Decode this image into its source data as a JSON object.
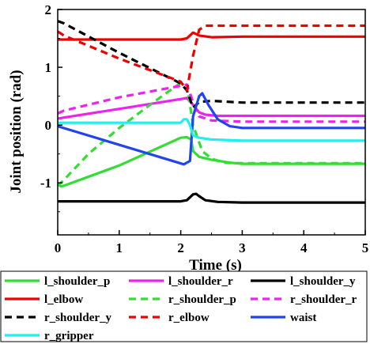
{
  "chart_data": {
    "type": "line",
    "title": "",
    "xlabel": "Time (s)",
    "ylabel": "Joint position (rad)",
    "xlim": [
      0,
      5
    ],
    "ylim": [
      -1.9,
      2
    ],
    "xticks": [
      "0",
      "1",
      "2",
      "3",
      "4",
      "5"
    ],
    "yticks": [
      "-1",
      "0",
      "1",
      "2"
    ],
    "grid": false,
    "legend_position": "bottom",
    "series": [
      {
        "name": "l_shoulder_p",
        "color": "#33dd33",
        "dash": "solid",
        "x": [
          0,
          0.05,
          0.1,
          1.0,
          2.0,
          2.1,
          2.17,
          2.2,
          2.3,
          2.5,
          2.8,
          3.0,
          5.0
        ],
        "y": [
          -1.02,
          -1.06,
          -1.05,
          -0.7,
          -0.22,
          -0.21,
          -0.25,
          -0.45,
          -0.55,
          -0.6,
          -0.65,
          -0.67,
          -0.67
        ]
      },
      {
        "name": "l_shoulder_r",
        "color": "#ee22ee",
        "dash": "solid",
        "x": [
          0,
          0.1,
          1.0,
          2.0,
          2.1,
          2.2,
          2.3,
          2.4,
          2.6,
          3.0,
          5.0
        ],
        "y": [
          0.11,
          0.13,
          0.28,
          0.45,
          0.47,
          0.35,
          0.22,
          0.18,
          0.16,
          0.16,
          0.16
        ]
      },
      {
        "name": "l_shoulder_y",
        "color": "#000000",
        "dash": "solid",
        "x": [
          0,
          2.0,
          2.1,
          2.2,
          2.25,
          2.3,
          2.4,
          2.6,
          3.0,
          5.0
        ],
        "y": [
          -1.32,
          -1.32,
          -1.3,
          -1.2,
          -1.19,
          -1.23,
          -1.3,
          -1.33,
          -1.34,
          -1.34
        ]
      },
      {
        "name": "l_elbow",
        "color": "#ee0000",
        "dash": "solid",
        "x": [
          0,
          2.0,
          2.1,
          2.2,
          2.3,
          2.5,
          3.0,
          5.0
        ],
        "y": [
          1.48,
          1.48,
          1.5,
          1.6,
          1.55,
          1.52,
          1.53,
          1.53
        ]
      },
      {
        "name": "r_shoulder_p",
        "color": "#33dd33",
        "dash": "dash",
        "x": [
          0,
          0.1,
          0.5,
          1.0,
          1.5,
          1.8,
          2.0,
          2.1,
          2.2,
          2.35,
          2.5,
          2.7,
          3.0,
          5.0
        ],
        "y": [
          -1.05,
          -0.95,
          -0.5,
          -0.05,
          0.35,
          0.58,
          0.73,
          0.7,
          0.0,
          -0.45,
          -0.58,
          -0.65,
          -0.66,
          -0.66
        ]
      },
      {
        "name": "r_shoulder_r",
        "color": "#ee22ee",
        "dash": "dash",
        "x": [
          0,
          0.1,
          1.0,
          2.0,
          2.1,
          2.2,
          2.3,
          2.5,
          3.0,
          5.0
        ],
        "y": [
          0.2,
          0.25,
          0.48,
          0.68,
          0.7,
          0.4,
          0.15,
          0.08,
          0.06,
          0.06
        ]
      },
      {
        "name": "r_shoulder_y",
        "color": "#000000",
        "dash": "dash",
        "x": [
          0,
          0.1,
          1.0,
          2.0,
          2.1,
          2.2,
          2.3,
          2.5,
          3.0,
          5.0
        ],
        "y": [
          1.8,
          1.76,
          1.25,
          0.72,
          0.6,
          0.3,
          0.4,
          0.42,
          0.39,
          0.39
        ]
      },
      {
        "name": "r_elbow",
        "color": "#ee0000",
        "dash": "dash",
        "x": [
          0,
          0.1,
          1.0,
          2.0,
          2.1,
          2.2,
          2.3,
          2.4,
          3.0,
          5.0
        ],
        "y": [
          1.62,
          1.55,
          1.15,
          0.75,
          0.6,
          1.2,
          1.65,
          1.72,
          1.72,
          1.72
        ]
      },
      {
        "name": "waist",
        "color": "#2244ee",
        "dash": "solid",
        "x": [
          0,
          2.05,
          2.15,
          2.2,
          2.3,
          2.35,
          2.45,
          2.6,
          2.8,
          3.0,
          5.0
        ],
        "y": [
          -0.02,
          -0.68,
          -0.62,
          0.15,
          0.5,
          0.55,
          0.35,
          0.1,
          -0.02,
          -0.05,
          -0.05
        ]
      },
      {
        "name": "r_gripper",
        "color": "#22eeee",
        "dash": "solid",
        "x": [
          0,
          2.0,
          2.05,
          2.1,
          2.15,
          2.2,
          2.3,
          2.5,
          3.0,
          5.0
        ],
        "y": [
          0.04,
          0.04,
          0.1,
          0.1,
          0.0,
          -0.18,
          -0.22,
          -0.25,
          -0.27,
          -0.27
        ]
      }
    ]
  }
}
